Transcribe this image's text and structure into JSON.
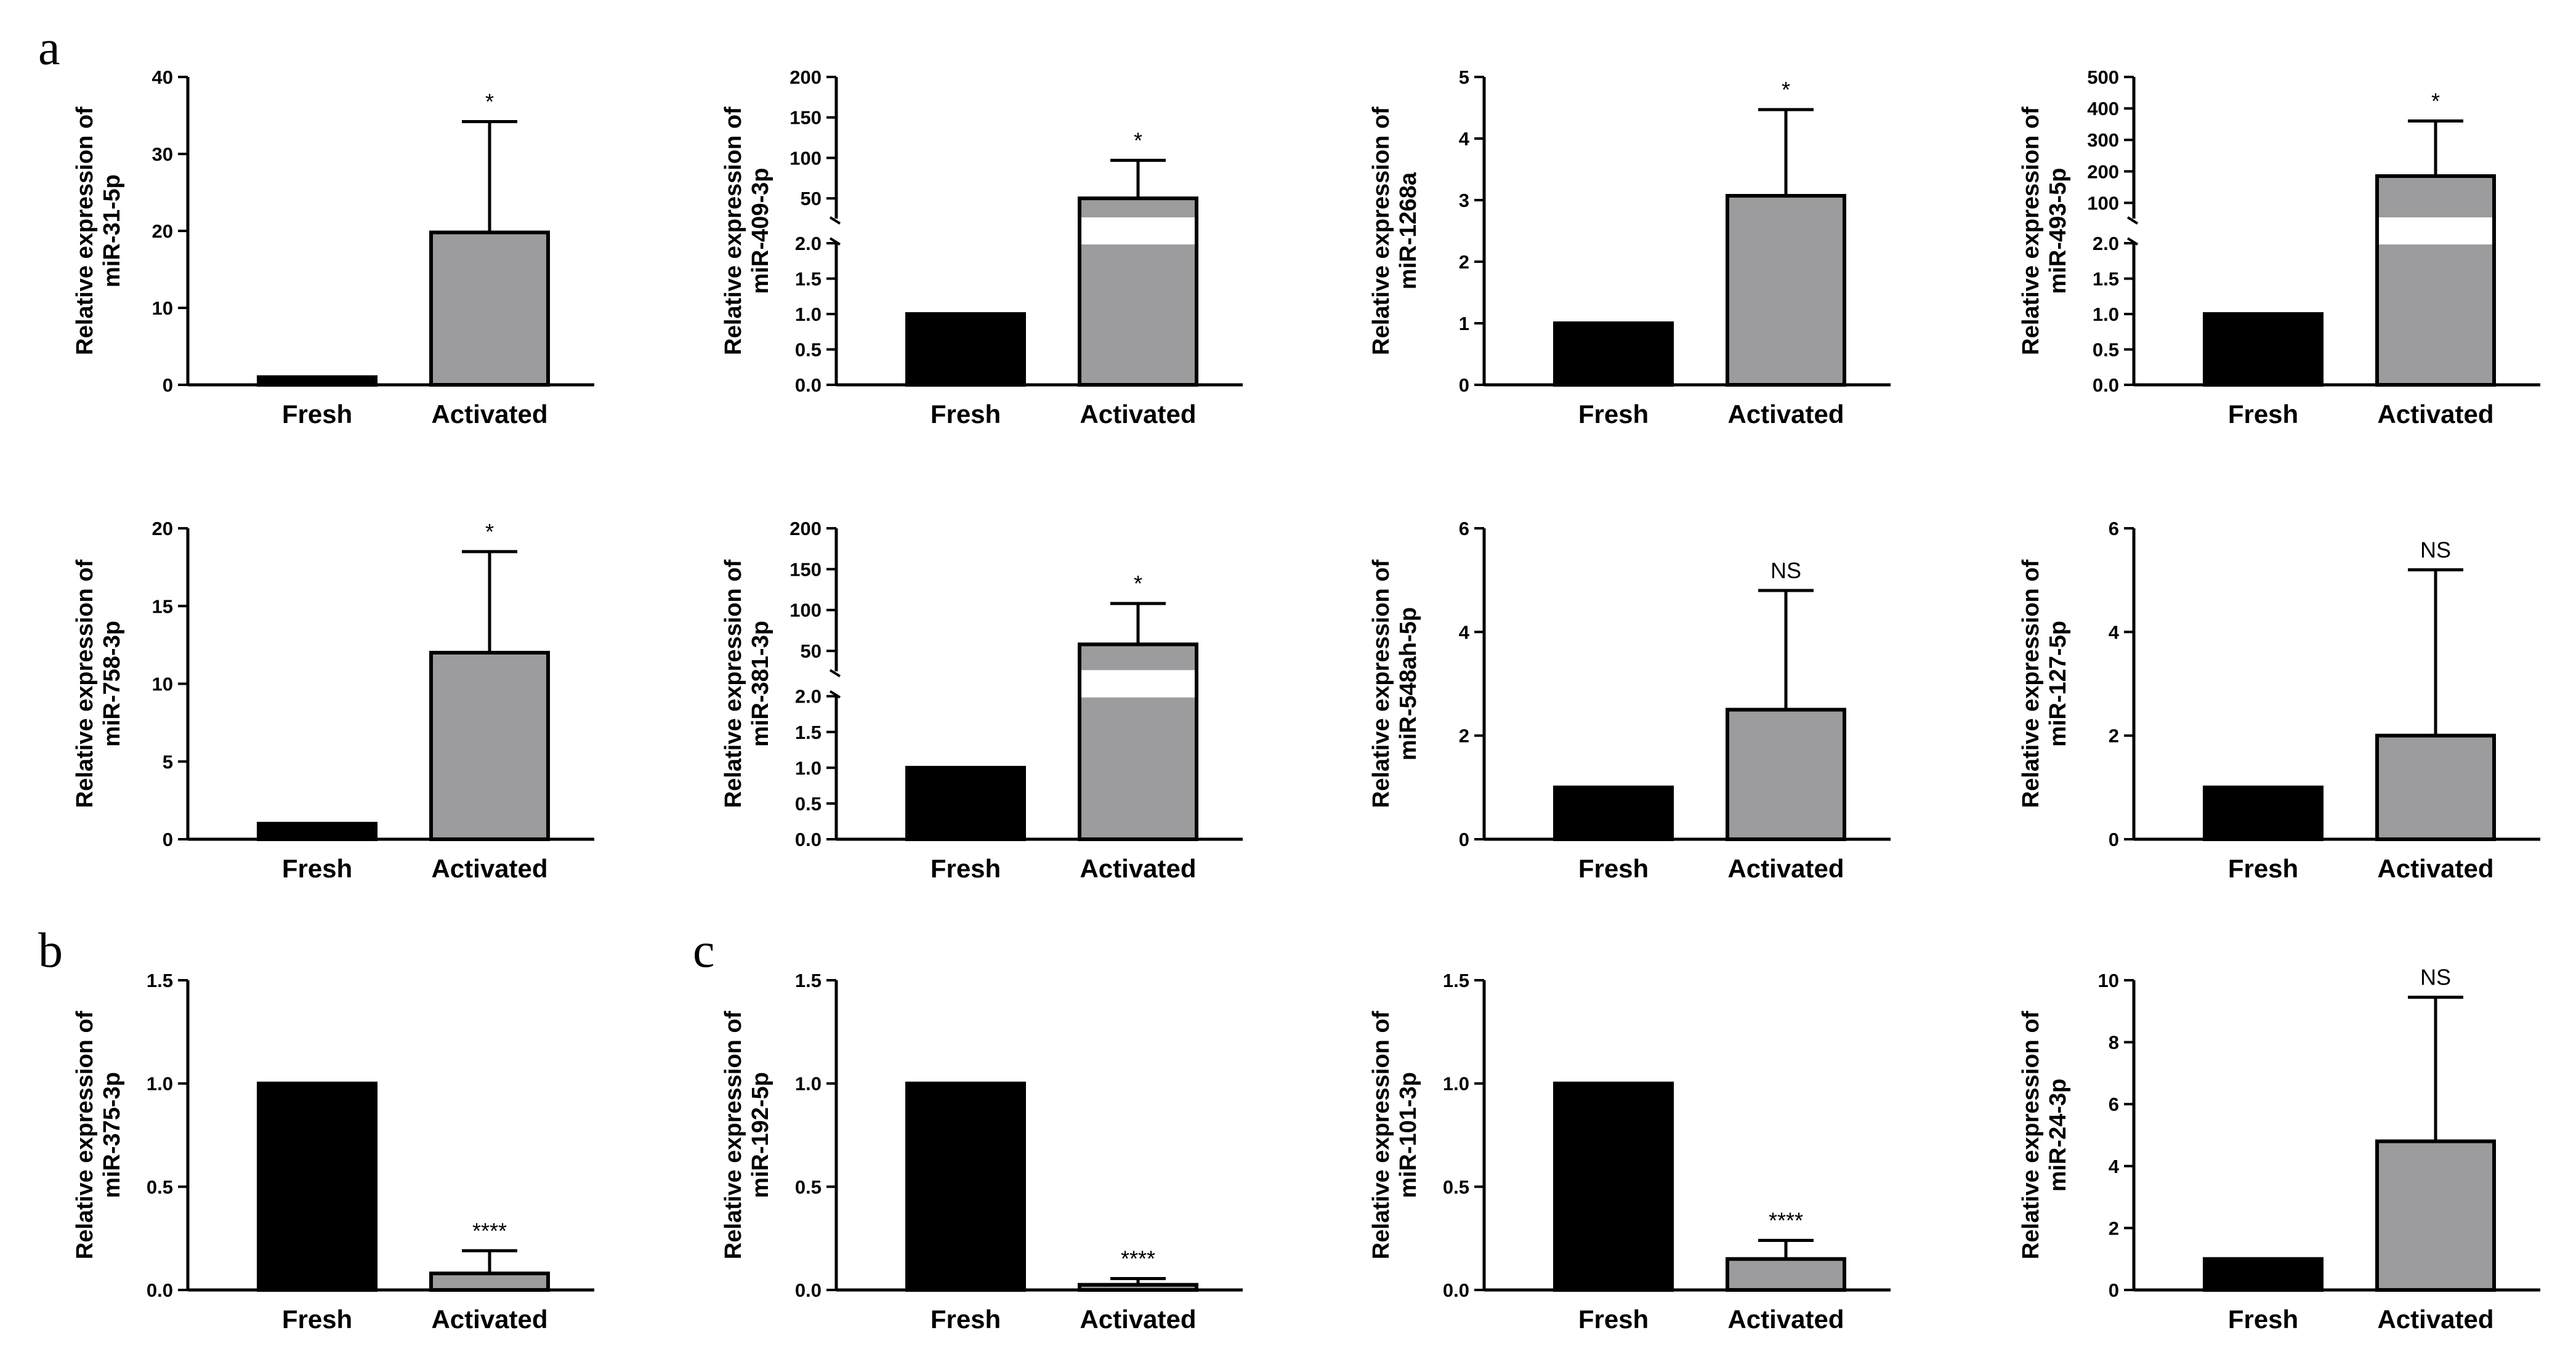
{
  "figure_labels": [
    "a",
    "b",
    "c"
  ],
  "colors": {
    "fresh": "#000000",
    "activated": "#9c9c9e",
    "axis": "#000000"
  },
  "chart_data": [
    {
      "type": "bar",
      "panel": "a",
      "ylabel": [
        "Relative expression of",
        "miR-31-5p"
      ],
      "categories": [
        "Fresh",
        "Activated"
      ],
      "values": [
        1,
        19.8
      ],
      "errors": [
        0,
        14.4
      ],
      "ylim": [
        0,
        40
      ],
      "yticks": [
        0,
        10,
        20,
        30,
        40
      ],
      "significance": "*"
    },
    {
      "type": "bar",
      "panel": "a",
      "ylabel": [
        "Relative expression of",
        "miR-409-3p"
      ],
      "categories": [
        "Fresh",
        "Activated"
      ],
      "values": [
        1,
        50
      ],
      "errors": [
        0,
        47
      ],
      "broken_axis": {
        "lower": [
          0,
          2
        ],
        "upper": [
          25,
          200
        ]
      },
      "yticks_lower": [
        "0.0",
        "0.5",
        "1.0",
        "1.5",
        "2.0"
      ],
      "yticks_upper": [
        50,
        100,
        150,
        200
      ],
      "significance": "*"
    },
    {
      "type": "bar",
      "panel": "a",
      "ylabel": [
        "Relative expression of",
        "miR-1268a"
      ],
      "categories": [
        "Fresh",
        "Activated"
      ],
      "values": [
        1,
        3.07
      ],
      "errors": [
        0,
        1.4
      ],
      "ylim": [
        0,
        5
      ],
      "yticks": [
        0,
        1,
        2,
        3,
        4,
        5
      ],
      "significance": "*"
    },
    {
      "type": "bar",
      "panel": "a",
      "ylabel": [
        "Relative expression of",
        "miR-493-5p"
      ],
      "categories": [
        "Fresh",
        "Activated"
      ],
      "values": [
        1,
        185
      ],
      "errors": [
        0,
        175
      ],
      "broken_axis": {
        "lower": [
          0,
          2
        ],
        "upper": [
          50,
          500
        ]
      },
      "yticks_lower": [
        "0.0",
        "0.5",
        "1.0",
        "1.5",
        "2.0"
      ],
      "yticks_upper": [
        100,
        200,
        300,
        400,
        500
      ],
      "significance": "*"
    },
    {
      "type": "bar",
      "panel": "a",
      "ylabel": [
        "Relative expression of",
        "miR-758-3p"
      ],
      "categories": [
        "Fresh",
        "Activated"
      ],
      "values": [
        1,
        12
      ],
      "errors": [
        0,
        6.5
      ],
      "ylim": [
        0,
        20
      ],
      "yticks": [
        0,
        5,
        10,
        15,
        20
      ],
      "significance": "*"
    },
    {
      "type": "bar",
      "panel": "a",
      "ylabel": [
        "Relative expression of",
        "miR-381-3p"
      ],
      "categories": [
        "Fresh",
        "Activated"
      ],
      "values": [
        1,
        58
      ],
      "errors": [
        0,
        50
      ],
      "broken_axis": {
        "lower": [
          0,
          2
        ],
        "upper": [
          25,
          200
        ]
      },
      "yticks_lower": [
        "0.0",
        "0.5",
        "1.0",
        "1.5",
        "2.0"
      ],
      "yticks_upper": [
        50,
        100,
        150,
        200
      ],
      "significance": "*"
    },
    {
      "type": "bar",
      "panel": "a",
      "ylabel": [
        "Relative expression of",
        "miR-548ah-5p"
      ],
      "categories": [
        "Fresh",
        "Activated"
      ],
      "values": [
        1,
        2.5
      ],
      "errors": [
        0,
        2.3
      ],
      "ylim": [
        0,
        6
      ],
      "yticks": [
        0,
        2,
        4,
        6
      ],
      "significance": "NS"
    },
    {
      "type": "bar",
      "panel": "a",
      "ylabel": [
        "Relative expression of",
        "miR-127-5p"
      ],
      "categories": [
        "Fresh",
        "Activated"
      ],
      "values": [
        1,
        2
      ],
      "errors": [
        0,
        3.2
      ],
      "ylim": [
        0,
        6
      ],
      "yticks": [
        0,
        2,
        4,
        6
      ],
      "significance": "NS"
    },
    {
      "type": "bar",
      "panel": "b",
      "ylabel": [
        "Relative expression of",
        "miR-375-3p"
      ],
      "categories": [
        "Fresh",
        "Activated"
      ],
      "values": [
        1,
        0.08
      ],
      "errors": [
        0,
        0.11
      ],
      "ylim": [
        0,
        1.5
      ],
      "yticks": [
        "0.0",
        "0.5",
        "1.0",
        "1.5"
      ],
      "significance": "****"
    },
    {
      "type": "bar",
      "panel": "c",
      "ylabel": [
        "Relative expression of",
        "miR-192-5p"
      ],
      "categories": [
        "Fresh",
        "Activated"
      ],
      "values": [
        1,
        0.025
      ],
      "errors": [
        0,
        0.03
      ],
      "ylim": [
        0,
        1.5
      ],
      "yticks": [
        "0.0",
        "0.5",
        "1.0",
        "1.5"
      ],
      "significance": "****"
    },
    {
      "type": "bar",
      "panel": "c",
      "ylabel": [
        "Relative expression of",
        "miR-101-3p"
      ],
      "categories": [
        "Fresh",
        "Activated"
      ],
      "values": [
        1,
        0.15
      ],
      "errors": [
        0,
        0.09
      ],
      "ylim": [
        0,
        1.5
      ],
      "yticks": [
        "0.0",
        "0.5",
        "1.0",
        "1.5"
      ],
      "significance": "****"
    },
    {
      "type": "bar",
      "panel": "c",
      "ylabel": [
        "Relative expression of",
        "miR-24-3p"
      ],
      "categories": [
        "Fresh",
        "Activated"
      ],
      "values": [
        1,
        4.8
      ],
      "errors": [
        0,
        4.65
      ],
      "ylim": [
        0,
        10
      ],
      "yticks": [
        0,
        2,
        4,
        6,
        8,
        10
      ],
      "significance": "NS"
    }
  ]
}
